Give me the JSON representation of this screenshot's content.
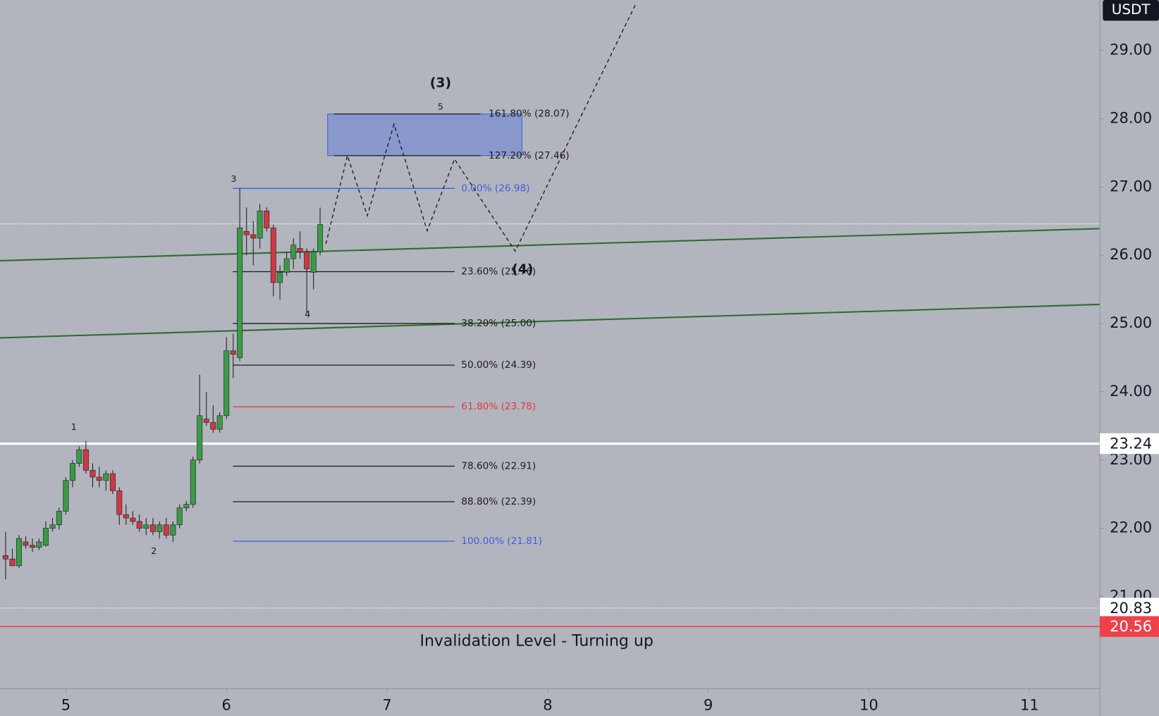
{
  "chart_data": {
    "type": "candlestick",
    "currency": "USDT",
    "xlim": [
      4.59,
      11.438
    ],
    "ylim": [
      19.65,
      29.74
    ],
    "xticks": [
      5,
      6,
      7,
      8,
      9,
      10,
      11
    ],
    "yticks": [
      {
        "value": 21,
        "label": "21.00"
      },
      {
        "value": 22,
        "label": "22.00"
      },
      {
        "value": 23,
        "label": "23.00"
      },
      {
        "value": 24,
        "label": "24.00"
      },
      {
        "value": 25,
        "label": "25.00"
      },
      {
        "value": 26,
        "label": "26.00"
      },
      {
        "value": 27,
        "label": "27.00"
      },
      {
        "value": 28,
        "label": "28.00"
      },
      {
        "value": 29,
        "label": "29.00"
      }
    ],
    "grid": false,
    "up_color": "#3c9a47",
    "down_color": "#cc3a42",
    "x": [
      4.625,
      4.667,
      4.708,
      4.75,
      4.792,
      4.833,
      4.875,
      4.917,
      4.958,
      5.0,
      5.042,
      5.083,
      5.125,
      5.167,
      5.208,
      5.25,
      5.292,
      5.333,
      5.375,
      5.417,
      5.458,
      5.5,
      5.542,
      5.583,
      5.625,
      5.667,
      5.708,
      5.75,
      5.792,
      5.833,
      5.875,
      5.917,
      5.958,
      6.0,
      6.042,
      6.083,
      6.125,
      6.167,
      6.208,
      6.25,
      6.292,
      6.333,
      6.375,
      6.417,
      6.458,
      6.5,
      6.542,
      6.583
    ],
    "open": [
      21.6,
      21.55,
      21.45,
      21.8,
      21.75,
      21.72,
      21.75,
      22.0,
      22.05,
      22.25,
      22.7,
      22.95,
      23.15,
      22.85,
      22.75,
      22.7,
      22.8,
      22.55,
      22.2,
      22.15,
      22.1,
      22.0,
      22.05,
      21.95,
      22.05,
      21.9,
      22.05,
      22.3,
      22.35,
      23.0,
      23.6,
      23.55,
      23.45,
      23.65,
      24.6,
      24.5,
      26.35,
      26.3,
      26.25,
      26.65,
      26.4,
      25.6,
      25.75,
      25.95,
      26.1,
      26.05,
      25.75,
      26.05
    ],
    "high": [
      21.95,
      21.7,
      21.9,
      21.88,
      21.85,
      21.85,
      22.1,
      22.15,
      22.3,
      22.75,
      23.0,
      23.2,
      23.28,
      22.95,
      22.9,
      22.85,
      22.85,
      22.6,
      22.35,
      22.25,
      22.2,
      22.15,
      22.15,
      22.1,
      22.15,
      22.1,
      22.35,
      22.4,
      23.05,
      24.25,
      24.0,
      23.8,
      23.7,
      24.8,
      24.85,
      26.98,
      26.7,
      26.5,
      26.75,
      26.7,
      26.45,
      25.85,
      26.05,
      26.25,
      26.35,
      26.1,
      26.1,
      26.7
    ],
    "low": [
      21.25,
      21.45,
      21.42,
      21.7,
      21.65,
      21.68,
      21.73,
      21.95,
      21.98,
      22.2,
      22.6,
      22.9,
      22.8,
      22.6,
      22.6,
      22.55,
      22.5,
      22.05,
      22.05,
      22.05,
      21.95,
      21.9,
      21.9,
      21.85,
      21.85,
      21.8,
      22.0,
      22.25,
      22.3,
      22.95,
      23.5,
      23.4,
      23.4,
      23.6,
      24.2,
      24.45,
      26.0,
      25.85,
      26.1,
      26.35,
      25.4,
      25.35,
      25.7,
      25.8,
      25.95,
      25.15,
      25.5,
      26.0
    ],
    "close": [
      21.55,
      21.45,
      21.85,
      21.75,
      21.72,
      21.8,
      22.0,
      22.05,
      22.25,
      22.7,
      22.95,
      23.15,
      22.85,
      22.75,
      22.7,
      22.8,
      22.55,
      22.2,
      22.15,
      22.1,
      22.0,
      22.05,
      21.95,
      22.05,
      21.9,
      22.05,
      22.3,
      22.35,
      23.0,
      23.65,
      23.55,
      23.45,
      23.65,
      24.6,
      24.55,
      26.4,
      26.3,
      26.25,
      26.65,
      26.4,
      25.6,
      25.75,
      25.95,
      26.15,
      26.05,
      25.8,
      26.05,
      26.45
    ],
    "trendlines": [
      {
        "x": [
          4.59,
          11.438
        ],
        "y": [
          25.92,
          26.39
        ],
        "color": "#2f6b30"
      },
      {
        "x": [
          4.59,
          11.438
        ],
        "y": [
          24.79,
          25.28
        ],
        "color": "#2f6b30"
      }
    ],
    "target_zone": {
      "x": [
        6.63,
        7.84
      ],
      "y": [
        27.46,
        28.07
      ],
      "color": "#6d86d6"
    },
    "fib_retracement": {
      "x": [
        6.04,
        7.421
      ],
      "label_x": 7.462,
      "levels": [
        {
          "value": 26.98,
          "label": "0.00% (26.98)",
          "color": "#3d5fe0"
        },
        {
          "value": 25.76,
          "label": "23.60% (25.76)",
          "color": "#1c1c1c"
        },
        {
          "value": 25.0,
          "label": "38.20% (25.00)",
          "color": "#1c1c1c"
        },
        {
          "value": 24.39,
          "label": "50.00% (24.39)",
          "color": "#1c1c1c"
        },
        {
          "value": 23.78,
          "label": "61.80% (23.78)",
          "color": "#e0393e"
        },
        {
          "value": 22.91,
          "label": "78.60% (22.91)",
          "color": "#1c1c1c"
        },
        {
          "value": 22.39,
          "label": "88.80% (22.39)",
          "color": "#1c1c1c"
        },
        {
          "value": 21.81,
          "label": "100.00% (21.81)",
          "color": "#3d5fe0"
        }
      ]
    },
    "fib_extension": {
      "x": [
        6.67,
        7.582
      ],
      "label_x": 7.632,
      "levels": [
        {
          "value": 28.07,
          "label": "161.80% (28.07)",
          "color": "#1c1c1c"
        },
        {
          "value": 27.46,
          "label": "127.20% (27.46)",
          "color": "#1c1c1c"
        }
      ]
    },
    "price_lines": [
      {
        "value": 26.46,
        "color": "#ffffff",
        "style": "dotted"
      },
      {
        "value": 23.24,
        "label": "23.24",
        "color": "#ffffff",
        "style": "solid"
      },
      {
        "value": 20.83,
        "label": "20.83",
        "color": "#ffffff",
        "style": "dotted"
      },
      {
        "value": 20.56,
        "label": "20.56",
        "color": "#f0404a",
        "style": "solid"
      }
    ],
    "projection": {
      "x": [
        6.619,
        6.753,
        6.877,
        7.043,
        7.25,
        7.42,
        7.798,
        8.548
      ],
      "y": [
        26.165,
        27.46,
        26.58,
        27.92,
        26.36,
        27.41,
        26.06,
        29.68
      ]
    },
    "annotations": [
      {
        "text": "1",
        "x": 5.05,
        "y": 23.48
      },
      {
        "text": "2",
        "x": 5.548,
        "y": 21.66
      },
      {
        "text": "3",
        "x": 6.045,
        "y": 27.11
      },
      {
        "text": "4",
        "x": 6.505,
        "y": 25.13
      },
      {
        "text": "5",
        "x": 7.333,
        "y": 28.17
      },
      {
        "text": "(3)",
        "x": 7.333,
        "y": 28.52
      },
      {
        "text": "(4)",
        "x": 7.844,
        "y": 25.79
      },
      {
        "text": "Invalidation Level - Turning up",
        "x": 7.931,
        "y": 20.34
      }
    ]
  }
}
